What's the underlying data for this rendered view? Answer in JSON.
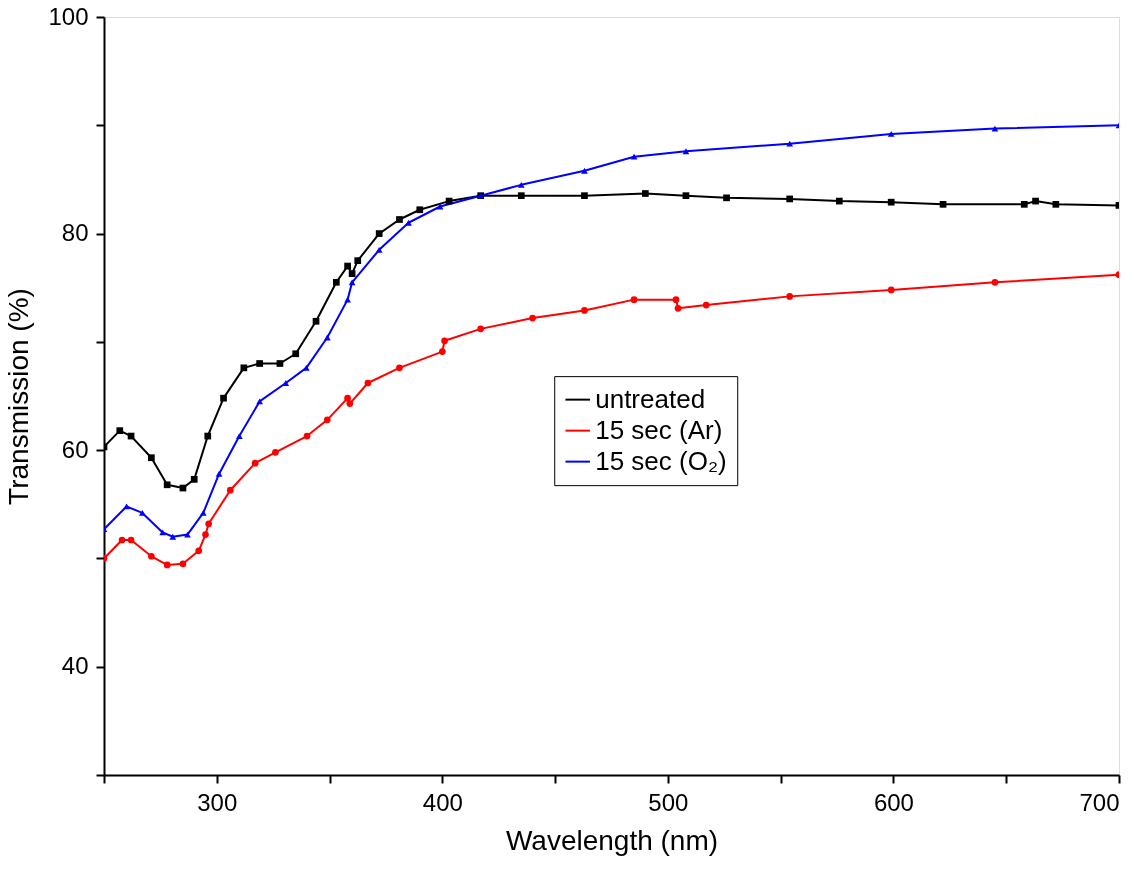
{
  "chart_data": {
    "type": "line",
    "xlabel": "Wavelength (nm)",
    "ylabel": "Transmission (%)",
    "xlim": [
      250,
      700
    ],
    "ylim": [
      30,
      100
    ],
    "xticks": [
      {
        "value": 250,
        "label": null
      },
      300,
      {
        "value": 350,
        "label": null
      },
      400,
      {
        "value": 450,
        "label": null
      },
      500,
      {
        "value": 550,
        "label": null
      },
      600,
      {
        "value": 650,
        "label": null
      },
      700
    ],
    "yticks": [
      {
        "value": 30,
        "label": null
      },
      40,
      {
        "value": 50,
        "label": null
      },
      60,
      {
        "value": 70,
        "label": null
      },
      80,
      {
        "value": 90,
        "label": null
      },
      100
    ],
    "grid": false,
    "legend": "center",
    "line_style": "solid",
    "series": [
      {
        "name": "untreated",
        "color": "#000000",
        "marker": "square",
        "x": [
          250,
          257,
          262,
          271,
          278,
          285,
          290,
          296,
          303,
          312,
          319,
          328,
          335,
          344,
          353,
          358,
          360,
          362.5,
          372,
          381,
          390,
          403,
          417,
          435,
          463,
          490,
          508,
          526,
          554,
          576,
          599,
          622,
          658,
          663,
          672,
          700
        ],
        "values": [
          60.3,
          61.8,
          61.3,
          59.3,
          56.8,
          56.5,
          57.3,
          61.3,
          64.8,
          67.6,
          68,
          68,
          68.9,
          71.9,
          75.5,
          77,
          76.3,
          77.5,
          80,
          81.3,
          82.2,
          83,
          83.5,
          83.5,
          83.5,
          83.7,
          83.5,
          83.3,
          83.2,
          83,
          82.9,
          82.7,
          82.7,
          83,
          82.7,
          82.6
        ]
      },
      {
        "name": "15 sec (Ar)",
        "color": "#ff0000",
        "marker": "circle",
        "x": [
          250,
          258,
          262,
          271,
          278,
          285,
          292,
          295,
          296.4,
          306,
          317,
          326,
          340,
          349,
          358,
          359,
          367,
          381,
          400,
          401,
          417,
          440,
          463,
          485,
          503.6,
          504.5,
          517,
          554,
          599,
          645,
          700
        ],
        "values": [
          50,
          51.7,
          51.7,
          50.2,
          49.4,
          49.5,
          50.7,
          52.2,
          53.2,
          56.3,
          58.8,
          59.8,
          61.3,
          62.8,
          64.8,
          64.3,
          66.2,
          67.6,
          69.1,
          70.1,
          71.2,
          72.2,
          72.9,
          73.9,
          73.9,
          73.1,
          73.4,
          74.2,
          74.8,
          75.5,
          76.2
        ]
      },
      {
        "name": "15 sec (O₂)",
        "color": "#0000ff",
        "marker": "triangle",
        "x": [
          250,
          260,
          267,
          276,
          280.5,
          287,
          294,
          301,
          310,
          319,
          330.6,
          339.7,
          349,
          358,
          360,
          372,
          385,
          399,
          417,
          435,
          463,
          485,
          508,
          554,
          599,
          645,
          700
        ],
        "values": [
          52.7,
          54.8,
          54.2,
          52.4,
          52,
          52.2,
          54.2,
          57.8,
          61.3,
          64.5,
          66.2,
          67.6,
          70.4,
          73.9,
          75.5,
          78.5,
          81,
          82.5,
          83.5,
          84.5,
          85.8,
          87.1,
          87.6,
          88.3,
          89.2,
          89.7,
          90
        ]
      }
    ]
  }
}
